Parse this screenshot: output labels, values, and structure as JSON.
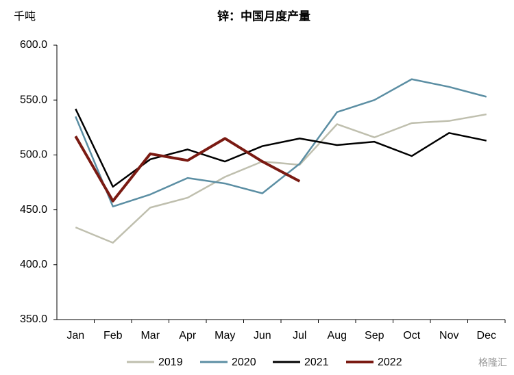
{
  "chart_data": {
    "type": "line",
    "title": "锌：中国月度产量",
    "y_label": "千吨",
    "categories": [
      "Jan",
      "Feb",
      "Mar",
      "Apr",
      "May",
      "Jun",
      "Jul",
      "Aug",
      "Sep",
      "Oct",
      "Nov",
      "Dec"
    ],
    "series": [
      {
        "name": "2019",
        "color": "#bfbfae",
        "values": [
          434,
          420,
          452,
          461,
          480,
          494,
          491,
          528,
          516,
          529,
          531,
          537
        ]
      },
      {
        "name": "2020",
        "color": "#5b8ea3",
        "values": [
          535,
          453,
          464,
          479,
          474,
          465,
          492,
          539,
          550,
          569,
          562,
          553
        ]
      },
      {
        "name": "2021",
        "color": "#000000",
        "values": [
          542,
          471,
          496,
          505,
          494,
          508,
          515,
          509,
          512,
          499,
          520,
          513
        ]
      },
      {
        "name": "2022",
        "color": "#7a1a12",
        "values": [
          517,
          458,
          501,
          495,
          515,
          494,
          476,
          null,
          null,
          null,
          null,
          null
        ]
      }
    ],
    "ylim": [
      350,
      600
    ],
    "yticks": [
      {
        "value": 350,
        "label": "350.0"
      },
      {
        "value": 400,
        "label": "400.0"
      },
      {
        "value": 450,
        "label": "450.0"
      },
      {
        "value": 500,
        "label": "500.0"
      },
      {
        "value": 550,
        "label": "550.0"
      },
      {
        "value": 600,
        "label": "600.0"
      }
    ],
    "legend": "bottom",
    "watermark": "格隆汇"
  }
}
